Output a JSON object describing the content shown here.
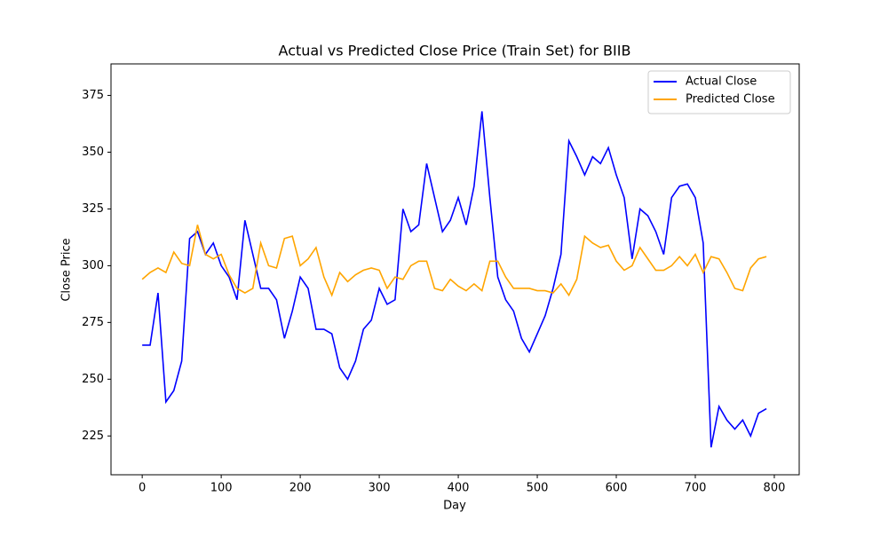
{
  "chart_data": {
    "type": "line",
    "title": "Actual vs Predicted Close Price (Train Set) for BIIB",
    "x_label": "Day",
    "y_label": "Close Price",
    "x": [
      0,
      10,
      20,
      30,
      40,
      50,
      60,
      70,
      80,
      90,
      100,
      110,
      120,
      130,
      140,
      150,
      160,
      170,
      180,
      190,
      200,
      210,
      220,
      230,
      240,
      250,
      260,
      270,
      280,
      290,
      300,
      310,
      320,
      330,
      340,
      350,
      360,
      370,
      380,
      390,
      400,
      410,
      420,
      430,
      440,
      450,
      460,
      470,
      480,
      490,
      500,
      510,
      520,
      530,
      540,
      550,
      560,
      570,
      580,
      590,
      600,
      610,
      620,
      630,
      640,
      650,
      660,
      670,
      680,
      690,
      700,
      710,
      720,
      730,
      740,
      750,
      760,
      770,
      780,
      790
    ],
    "series": [
      {
        "name": "Actual Close",
        "color": "#0000ff",
        "values": [
          265,
          265,
          288,
          240,
          245,
          258,
          312,
          315,
          305,
          310,
          300,
          295,
          285,
          320,
          305,
          290,
          290,
          285,
          268,
          280,
          295,
          290,
          272,
          272,
          270,
          255,
          250,
          258,
          272,
          276,
          290,
          283,
          285,
          325,
          315,
          318,
          345,
          330,
          315,
          320,
          330,
          318,
          335,
          368,
          330,
          295,
          285,
          280,
          268,
          262,
          270,
          278,
          290,
          305,
          355,
          348,
          340,
          348,
          345,
          352,
          340,
          330,
          303,
          325,
          322,
          315,
          305,
          330,
          335,
          336,
          330,
          310,
          220,
          238,
          232,
          228,
          232,
          225,
          235,
          237
        ]
      },
      {
        "name": "Predicted Close",
        "color": "#ffa500",
        "values": [
          294,
          297,
          299,
          297,
          306,
          301,
          300,
          318,
          305,
          303,
          305,
          296,
          290,
          288,
          290,
          310,
          300,
          299,
          312,
          313,
          300,
          303,
          308,
          295,
          287,
          297,
          293,
          296,
          298,
          299,
          298,
          290,
          295,
          294,
          300,
          302,
          302,
          290,
          289,
          294,
          291,
          289,
          292,
          289,
          302,
          302,
          295,
          290,
          290,
          290,
          289,
          289,
          288,
          292,
          287,
          294,
          313,
          310,
          308,
          309,
          302,
          298,
          300,
          308,
          303,
          298,
          298,
          300,
          304,
          300,
          305,
          297,
          304,
          303,
          297,
          290,
          289,
          299,
          303,
          304
        ]
      }
    ],
    "xlim": [
      -39.5,
      831.5
    ],
    "ylim": [
      207.9,
      388.9
    ],
    "xticks": [
      0,
      100,
      200,
      300,
      400,
      500,
      600,
      700,
      800
    ],
    "yticks": [
      225,
      250,
      275,
      300,
      325,
      350,
      375
    ],
    "legend": "upper right"
  }
}
